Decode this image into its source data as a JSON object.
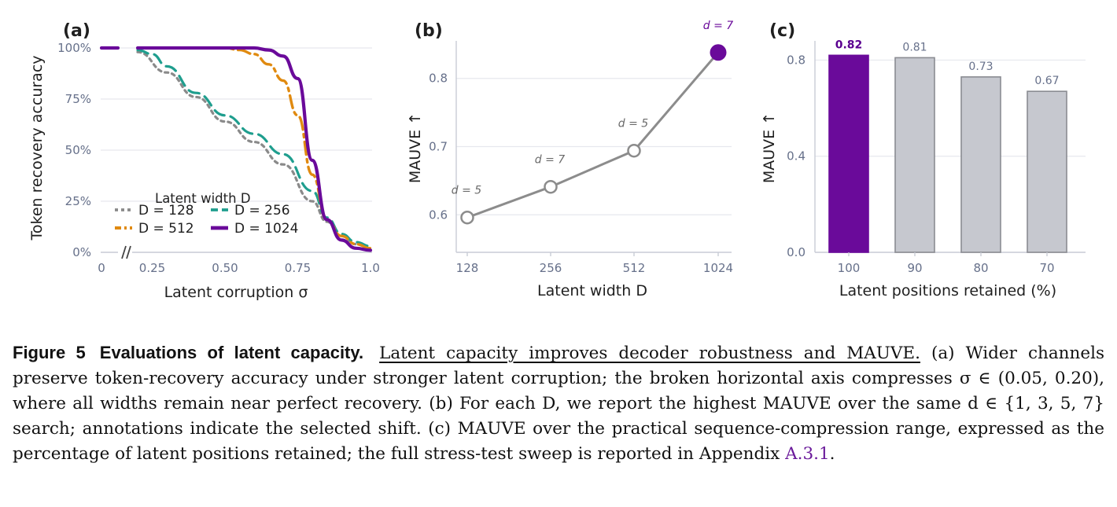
{
  "chart_data": [
    {
      "panel": "(a)",
      "type": "line",
      "xlabel": "Latent corruption σ",
      "ylabel": "Token recovery accuracy",
      "x_ticks": [
        "0",
        "0.25",
        "0.50",
        "0.75",
        "1.0"
      ],
      "y_ticks": [
        "0%",
        "25%",
        "50%",
        "75%",
        "100%"
      ],
      "axis_break": "//",
      "xlim": [
        0,
        1.0
      ],
      "ylim": [
        0,
        100
      ],
      "legend_title": "Latent width D",
      "legend_position": "bottom-left",
      "grid": "horizontal",
      "series": [
        {
          "name": "D = 128",
          "color": "#8a8a8a",
          "dash": "dotted",
          "x": [
            0,
            0.05,
            0.2,
            0.3,
            0.4,
            0.5,
            0.6,
            0.7,
            0.8,
            0.85,
            0.9,
            0.95,
            1.0
          ],
          "y": [
            100,
            100,
            98,
            88,
            76,
            64,
            54,
            43,
            25,
            15,
            8,
            4,
            2
          ]
        },
        {
          "name": "D = 256",
          "color": "#1f9e8e",
          "dash": "dashed",
          "x": [
            0,
            0.05,
            0.2,
            0.25,
            0.3,
            0.4,
            0.5,
            0.6,
            0.7,
            0.8,
            0.85,
            0.9,
            0.95,
            1.0
          ],
          "y": [
            100,
            100,
            99,
            97,
            91,
            78,
            67,
            58,
            48,
            30,
            17,
            9,
            5,
            3
          ]
        },
        {
          "name": "D = 512",
          "color": "#e08a10",
          "dash": "dashdot",
          "x": [
            0,
            0.05,
            0.2,
            0.4,
            0.5,
            0.55,
            0.6,
            0.65,
            0.7,
            0.75,
            0.8,
            0.85,
            0.9,
            0.95,
            1.0
          ],
          "y": [
            100,
            100,
            100,
            100,
            100,
            99,
            97,
            92,
            84,
            67,
            38,
            16,
            8,
            4,
            2
          ]
        },
        {
          "name": "D = 1024",
          "color": "#6a0a9a",
          "dash": "solid",
          "x": [
            0,
            0.05,
            0.2,
            0.4,
            0.6,
            0.65,
            0.7,
            0.75,
            0.8,
            0.85,
            0.9,
            0.95,
            1.0
          ],
          "y": [
            100,
            100,
            100,
            100,
            100,
            99,
            96,
            85,
            45,
            16,
            6,
            2,
            1
          ]
        }
      ]
    },
    {
      "panel": "(b)",
      "type": "line",
      "xlabel": "Latent width D",
      "ylabel": "MAUVE ↑",
      "categories": [
        "128",
        "256",
        "512",
        "1024"
      ],
      "y_ticks": [
        "0.6",
        "0.7",
        "0.8"
      ],
      "ylim": [
        0.545,
        0.855
      ],
      "values": [
        0.596,
        0.641,
        0.694,
        0.838
      ],
      "annotations": [
        "d = 5",
        "d = 7",
        "d = 5",
        "d = 7"
      ],
      "highlight_index": 3,
      "line_color": "#8c8c8c",
      "highlight_color": "#6a0a9a",
      "grid": "horizontal"
    },
    {
      "panel": "(c)",
      "type": "bar",
      "xlabel": "Latent positions retained (%)",
      "ylabel": "MAUVE ↑",
      "categories": [
        "100",
        "90",
        "80",
        "70"
      ],
      "values": [
        0.82,
        0.81,
        0.73,
        0.67
      ],
      "value_labels": [
        "0.82",
        "0.81",
        "0.73",
        "0.67"
      ],
      "y_ticks": [
        "0.0",
        "0.4",
        "0.8"
      ],
      "ylim": [
        0,
        0.88
      ],
      "highlight_index": 0,
      "highlight_color": "#6a0a9a",
      "bar_color": "#c6c8cf",
      "grid": "horizontal"
    }
  ],
  "caption": {
    "label": "Figure 5",
    "heading": "Evaluations of latent capacity.",
    "underlined": "Latent capacity improves decoder robustness and MAUVE.",
    "body": " (a) Wider channels preserve token-recovery accuracy under stronger latent corruption; the broken horizontal axis compresses σ ∈ (0.05, 0.20), where all widths remain near perfect recovery. (b) For each D, we report the highest MAUVE over the same d ∈ {1, 3, 5, 7} search; annotations indicate the selected shift. (c) MAUVE over the practical sequence-compression range, expressed as the percentage of latent positions retained; the full stress-test sweep is reported in Appendix ",
    "link": "A.3.1",
    "end": "."
  }
}
